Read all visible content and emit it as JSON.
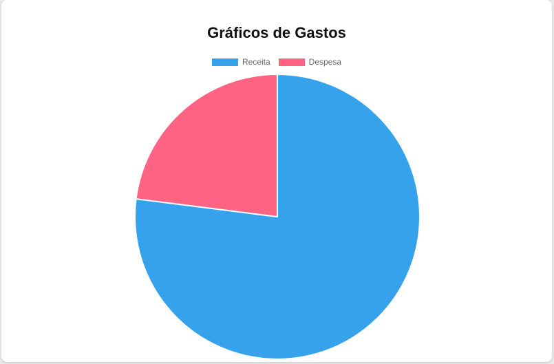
{
  "chart_data": {
    "type": "pie",
    "title": "Gráficos de Gastos",
    "categories": [
      "Receita",
      "Despesa"
    ],
    "values": [
      77,
      23
    ],
    "colors": [
      "#36a2eb",
      "#ff6384"
    ],
    "legend_position": "top",
    "border_color": "#ffffff"
  }
}
